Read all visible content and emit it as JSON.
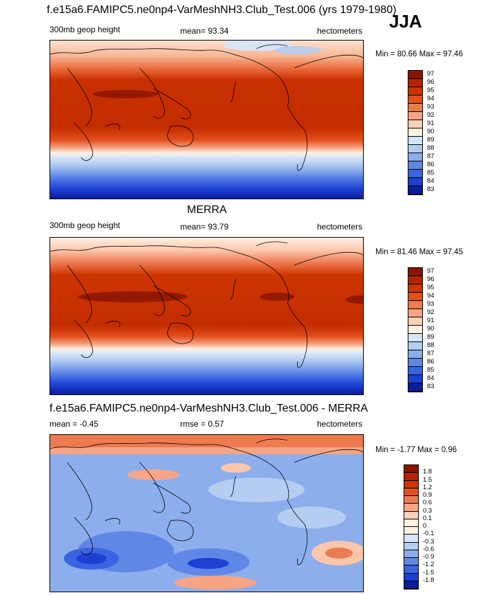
{
  "figure": {
    "title": "f.e15a6.FAMIPC5.ne0np4-VarMeshNH3.Club_Test.006 (yrs 1979-1980)",
    "season": "JJA"
  },
  "panels": [
    {
      "id": "model",
      "title": "",
      "left_label": "300mb geop height",
      "center_label": "mean=  93.34",
      "right_label": "hectometers",
      "minmax": "Min =  80.66 Max =  97.46",
      "colorbar": {
        "labels": [
          "97",
          "96",
          "95",
          "94",
          "93",
          "92",
          "91",
          "90",
          "89",
          "88",
          "87",
          "86",
          "85",
          "84",
          "83"
        ],
        "colors": [
          "#8a1500",
          "#b52400",
          "#cc3400",
          "#e2501c",
          "#ee7a50",
          "#f7a585",
          "#fdd0b8",
          "#fff0e2",
          "#d6e6f8",
          "#b4cdf1",
          "#8caeec",
          "#5f88e6",
          "#3a64e0",
          "#1d3fd3",
          "#0a1e9c"
        ]
      }
    },
    {
      "id": "obs",
      "title": "MERRA",
      "left_label": "300mb geop height",
      "center_label": "mean=  93.79",
      "right_label": "hectometers",
      "minmax": "Min =  81.46 Max =  97.45",
      "colorbar": {
        "labels": [
          "97",
          "96",
          "95",
          "94",
          "93",
          "92",
          "91",
          "90",
          "89",
          "88",
          "87",
          "86",
          "85",
          "84",
          "83"
        ],
        "colors": [
          "#8a1500",
          "#b52400",
          "#cc3400",
          "#e2501c",
          "#ee7a50",
          "#f7a585",
          "#fdd0b8",
          "#fff0e2",
          "#d6e6f8",
          "#b4cdf1",
          "#8caeec",
          "#5f88e6",
          "#3a64e0",
          "#1d3fd3",
          "#0a1e9c"
        ]
      }
    },
    {
      "id": "diff",
      "title": "f.e15a6.FAMIPC5.ne0np4-VarMeshNH3.Club_Test.006 - MERRA",
      "left_label": "mean =  -0.45",
      "center_label": "rmse =   0.57",
      "right_label": "hectometers",
      "minmax": "Min =  -1.77 Max =   0.96",
      "colorbar": {
        "labels": [
          "1.8",
          "1.5",
          "1.2",
          "0.9",
          "0.6",
          "0.3",
          "0.1",
          "0",
          "-0.1",
          "-0.3",
          "-0.6",
          "-0.9",
          "-1.2",
          "-1.5",
          "-1.8"
        ],
        "colors": [
          "#8a1500",
          "#b52400",
          "#cc3400",
          "#e2501c",
          "#ee7a50",
          "#f7a585",
          "#fdd0b8",
          "#fff0e2",
          "#fff0e2",
          "#d6e6f8",
          "#b4cdf1",
          "#8caeec",
          "#5f88e6",
          "#3a64e0",
          "#1d3fd3",
          "#0a1e9c"
        ]
      }
    }
  ]
}
